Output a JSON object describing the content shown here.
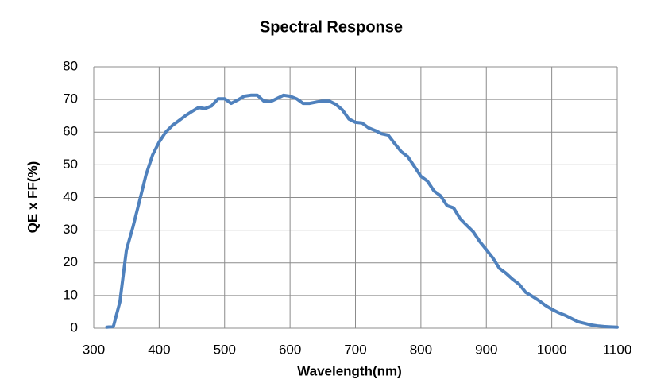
{
  "chart_data": {
    "type": "line",
    "title": "Spectral Response",
    "x_label": "Wavelength(nm)",
    "y_label": "QE x FF(%)",
    "x": [
      320,
      330,
      340,
      350,
      360,
      370,
      380,
      390,
      400,
      410,
      420,
      430,
      440,
      450,
      460,
      470,
      480,
      490,
      500,
      510,
      520,
      530,
      540,
      550,
      560,
      570,
      580,
      590,
      600,
      610,
      620,
      630,
      640,
      650,
      660,
      670,
      680,
      690,
      700,
      710,
      720,
      730,
      740,
      750,
      760,
      770,
      780,
      790,
      800,
      810,
      820,
      830,
      840,
      850,
      860,
      870,
      880,
      890,
      900,
      910,
      920,
      930,
      940,
      950,
      960,
      970,
      980,
      990,
      1000,
      1010,
      1020,
      1030,
      1040,
      1050,
      1060,
      1070,
      1080,
      1090,
      1100
    ],
    "series": [
      {
        "name": "QE",
        "color": "#4f81bd",
        "values": [
          0.3,
          0.5,
          8,
          24,
          31,
          39,
          47,
          53,
          57,
          60,
          62,
          63.5,
          65,
          66.3,
          67.5,
          67.2,
          68,
          70.2,
          70.2,
          68.8,
          69.8,
          71,
          71.3,
          71.3,
          69.5,
          69.3,
          70.3,
          71.3,
          71,
          70.2,
          68.8,
          68.8,
          69.2,
          69.5,
          69.5,
          68.5,
          66.8,
          64,
          63,
          62.8,
          61.3,
          60.5,
          59.5,
          59.1,
          56.5,
          54,
          52.5,
          49.5,
          46.5,
          45,
          42,
          40.5,
          37.5,
          36.8,
          33.5,
          31.5,
          29.5,
          26.5,
          24,
          21.5,
          18.3,
          16.8,
          15,
          13.5,
          11,
          9.8,
          8.5,
          7,
          5.8,
          4.8,
          4,
          3,
          2,
          1.5,
          1,
          0.7,
          0.5,
          0.4,
          0.3
        ]
      }
    ],
    "xlim": [
      300,
      1100
    ],
    "xticks": [
      300,
      400,
      500,
      600,
      700,
      800,
      900,
      1000,
      1100
    ],
    "ylim": [
      0,
      80
    ],
    "yticks": [
      0,
      10,
      20,
      30,
      40,
      50,
      60,
      70,
      80
    ],
    "grid": true
  }
}
